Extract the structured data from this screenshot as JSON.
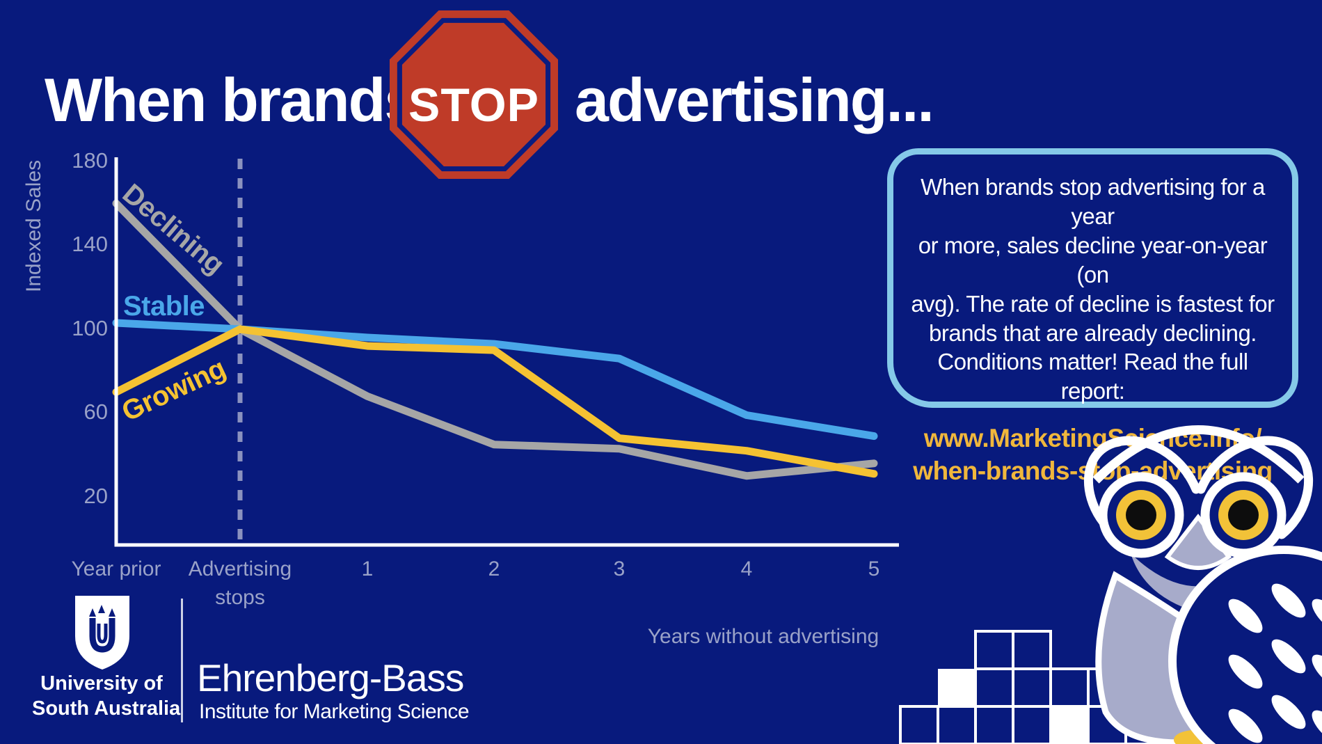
{
  "title": {
    "part1": "When brands",
    "stop": "STOP",
    "part2": "advertising..."
  },
  "chart_data": {
    "type": "line",
    "ylabel": "Indexed Sales",
    "xlabel": "Years without advertising",
    "categories": [
      "Year prior",
      "Advertising\nstops",
      "1",
      "2",
      "3",
      "4",
      "5"
    ],
    "yticks": [
      "180",
      "140",
      "100",
      "60",
      "20"
    ],
    "ylim": [
      0,
      190
    ],
    "grid": false,
    "legend_position": "inline-labels-on-lines",
    "dashed_marker_at_category": "Advertising stops",
    "series": [
      {
        "name": "Declining",
        "color": "#a6a6a6",
        "values": [
          160,
          100,
          68,
          45,
          43,
          30,
          36
        ]
      },
      {
        "name": "Stable",
        "color": "#4aa7e9",
        "values": [
          103,
          100,
          96,
          93,
          86,
          59,
          49
        ]
      },
      {
        "name": "Growing",
        "color": "#f5c232",
        "values": [
          70,
          100,
          92,
          90,
          48,
          42,
          31
        ]
      }
    ]
  },
  "infobox": {
    "body": "When brands stop advertising for a year\nor more, sales decline year-on-year (on\navg). The rate of decline is fastest for\nbrands that are already declining.\nConditions matter! Read the full report:",
    "link": "www.MarketingScience.info/\nwhen-brands-stop-advertising"
  },
  "footer": {
    "university_line1": "University of",
    "university_line2": "South Australia",
    "institute_name": "Ehrenberg-Bass",
    "institute_sub": "Institute for Marketing Science"
  },
  "icons": {
    "stop_sign": "red-octagon-stop-sign",
    "unisa_shield": "university-shield-with-arrows",
    "owl": "ehrenberg-bass-owl-mascot",
    "pixel_grid": "decorative-pixel-squares"
  },
  "colors": {
    "background": "#081a7d",
    "stop_red": "#bf3b28",
    "box_border": "#85c9e8",
    "axis_text": "#9aa2c8",
    "dashed_line": "#8b92bf",
    "link_yellow": "#f0b73c",
    "lavender": "#a7abca",
    "white": "#ffffff"
  }
}
